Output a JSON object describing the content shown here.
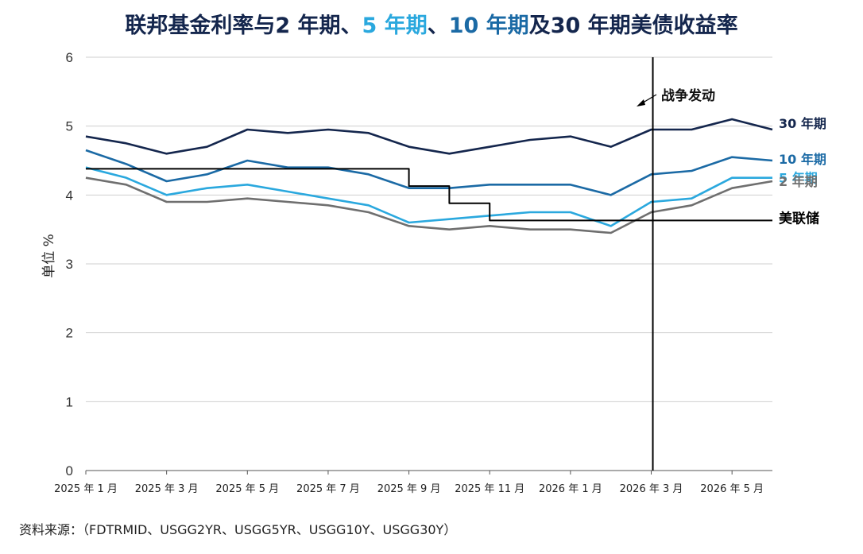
{
  "title": {
    "parts": [
      {
        "text": "联邦基金利率与",
        "color": "#14264d"
      },
      {
        "text": "2 年期",
        "color": "#14264d"
      },
      {
        "text": "、",
        "color": "#14264d"
      },
      {
        "text": "5 年期",
        "color": "#2aa8de"
      },
      {
        "text": "、",
        "color": "#14264d"
      },
      {
        "text": "10 年期",
        "color": "#1b6aa5"
      },
      {
        "text": "及",
        "color": "#14264d"
      },
      {
        "text": "30 年期",
        "color": "#14264d"
      },
      {
        "text": "美债收益率",
        "color": "#14264d"
      }
    ]
  },
  "source": "资料来源：（FDTRMID、USGG2YR、USGG5YR、USGG10Y、USGG30Y）",
  "chart_data": {
    "type": "line",
    "ylabel": "单位 %",
    "ylim": [
      0,
      6
    ],
    "yticks": [
      0,
      1,
      2,
      3,
      4,
      5,
      6
    ],
    "xlim": [
      "2025-01",
      "2026-06"
    ],
    "xtick_labels": [
      "2025 年 1 月",
      "2025 年 3 月",
      "2025 年 5 月",
      "2025 年 7 月",
      "2025 年 9 月",
      "2025 年 11 月",
      "2026 年 1 月",
      "2026 年 3 月",
      "2026 年 5 月"
    ],
    "grid": "horizontal",
    "x": [
      "2025-01",
      "2025-02",
      "2025-03",
      "2025-04",
      "2025-05",
      "2025-06",
      "2025-07",
      "2025-08",
      "2025-09",
      "2025-10",
      "2025-11",
      "2025-12",
      "2026-01",
      "2026-02",
      "2026-03",
      "2026-04",
      "2026-05",
      "2026-06"
    ],
    "series": [
      {
        "name": "30 年期",
        "color": "#14264d",
        "values": [
          4.85,
          4.75,
          4.6,
          4.7,
          4.95,
          4.9,
          4.95,
          4.9,
          4.7,
          4.6,
          4.7,
          4.8,
          4.85,
          4.7,
          4.95,
          4.95,
          5.1,
          4.95
        ]
      },
      {
        "name": "10 年期",
        "color": "#1b6aa5",
        "values": [
          4.65,
          4.45,
          4.2,
          4.3,
          4.5,
          4.4,
          4.4,
          4.3,
          4.1,
          4.1,
          4.15,
          4.15,
          4.15,
          4.0,
          4.3,
          4.35,
          4.55,
          4.5
        ]
      },
      {
        "name": "5 年期",
        "color": "#2aa8de",
        "values": [
          4.4,
          4.25,
          4.0,
          4.1,
          4.15,
          4.05,
          3.95,
          3.85,
          3.6,
          3.65,
          3.7,
          3.75,
          3.75,
          3.55,
          3.9,
          3.95,
          4.25,
          4.25
        ]
      },
      {
        "name": "2 年期",
        "color": "#6f6f6f",
        "values": [
          4.25,
          4.15,
          3.9,
          3.9,
          3.95,
          3.9,
          3.85,
          3.75,
          3.55,
          3.5,
          3.55,
          3.5,
          3.5,
          3.45,
          3.75,
          3.85,
          4.1,
          4.2
        ]
      },
      {
        "name": "美联储",
        "color": "#000000",
        "step": true,
        "values": [
          4.38,
          4.38,
          4.38,
          4.38,
          4.38,
          4.38,
          4.38,
          4.38,
          4.13,
          3.88,
          3.63,
          3.63,
          3.63,
          3.63,
          3.63,
          3.63,
          3.63,
          3.63
        ]
      }
    ],
    "annotations": [
      {
        "text": "战争发动",
        "x": "2026-03"
      }
    ]
  }
}
